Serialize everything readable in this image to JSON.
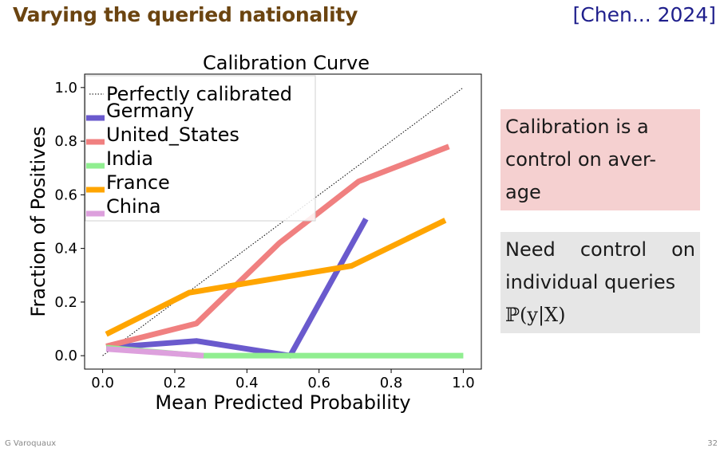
{
  "slide": {
    "title": "Varying the queried nationality",
    "citation": "[Chen... 2024]",
    "author": "G Varoquaux",
    "page_number": "32"
  },
  "boxes": {
    "calibration_note": "Calibration is a control on average",
    "calibration_note_hyphenated": [
      "Calibration is a",
      "control on aver-",
      "age"
    ],
    "need_control": "Need control on",
    "individual_queries": "individual queries",
    "formula": "ℙ(y|X)"
  },
  "chart_data": {
    "type": "line",
    "title": "Calibration Curve",
    "xlabel": "Mean Predicted Probability",
    "ylabel": "Fraction of Positives",
    "xlim": [
      -0.05,
      1.05
    ],
    "ylim": [
      -0.05,
      1.05
    ],
    "xticks": [
      "0.0",
      "0.2",
      "0.4",
      "0.6",
      "0.8",
      "1.0"
    ],
    "yticks": [
      "0.0",
      "0.2",
      "0.4",
      "0.6",
      "0.8",
      "1.0"
    ],
    "legend_position": "top-left",
    "reference": {
      "name": "Perfectly calibrated",
      "x": [
        0,
        1
      ],
      "y": [
        0,
        1
      ],
      "color": "#000000",
      "style": "dotted"
    },
    "series": [
      {
        "name": "Germany",
        "color": "#6a5acd",
        "x": [
          0.01,
          0.26,
          0.52,
          0.73
        ],
        "y": [
          0.03,
          0.055,
          0.0,
          0.51
        ]
      },
      {
        "name": "United_States",
        "color": "#f08080",
        "x": [
          0.01,
          0.26,
          0.49,
          0.71,
          0.96
        ],
        "y": [
          0.035,
          0.12,
          0.42,
          0.65,
          0.78
        ]
      },
      {
        "name": "India",
        "color": "#90ee90",
        "x": [
          0.01,
          0.27,
          1.0
        ],
        "y": [
          0.03,
          0.0,
          0.0
        ]
      },
      {
        "name": "France",
        "color": "#ffa500",
        "x": [
          0.01,
          0.24,
          0.69,
          0.95
        ],
        "y": [
          0.08,
          0.235,
          0.335,
          0.505
        ]
      },
      {
        "name": "China",
        "color": "#dda0dd",
        "x": [
          0.01,
          0.28
        ],
        "y": [
          0.025,
          0.0
        ]
      }
    ]
  }
}
